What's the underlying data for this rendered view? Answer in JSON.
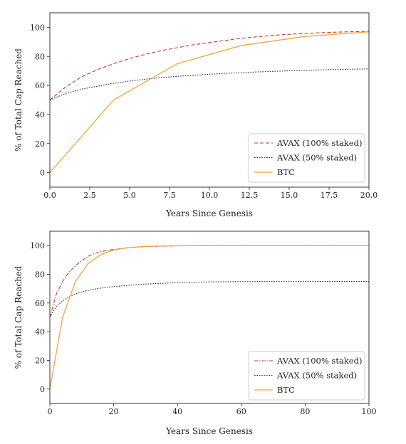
{
  "chart_data": [
    {
      "type": "line",
      "xlabel": "Years Since Genesis",
      "ylabel": "% of Total Cap Reached",
      "xlim": [
        0,
        20
      ],
      "ylim": [
        -10,
        110
      ],
      "xticks": [
        "0.0",
        "2.5",
        "5.0",
        "7.5",
        "10.0",
        "12.5",
        "15.0",
        "17.5",
        "20.0"
      ],
      "yticks": [
        "0",
        "20",
        "40",
        "60",
        "80",
        "100"
      ],
      "grid": false,
      "legend_position": "lower-right",
      "series": [
        {
          "name": "AVAX (100% staked)",
          "color": "#c0392b",
          "style": "dashed",
          "x": [
            0,
            1,
            2,
            3,
            4,
            5,
            6,
            7,
            8,
            9,
            10,
            11,
            12,
            13,
            14,
            15,
            16,
            17,
            18,
            19,
            20
          ],
          "y": [
            50,
            59,
            66,
            71,
            75,
            78.5,
            81.5,
            84,
            86,
            88,
            89.5,
            91,
            92.5,
            93.5,
            94.5,
            95.2,
            95.8,
            96.3,
            96.7,
            97,
            97.3
          ]
        },
        {
          "name": "AVAX (50% staked)",
          "color": "#2c2c3a",
          "style": "dotted",
          "x": [
            0,
            1,
            2,
            3,
            4,
            5,
            6,
            7,
            8,
            9,
            10,
            11,
            12,
            13,
            14,
            15,
            16,
            17,
            18,
            19,
            20
          ],
          "y": [
            50,
            54.5,
            57.5,
            59.5,
            61.5,
            63,
            64.3,
            65.4,
            66.3,
            67,
            67.7,
            68.3,
            68.8,
            69.3,
            69.7,
            70.1,
            70.4,
            70.7,
            71,
            71.2,
            71.4
          ]
        },
        {
          "name": "BTC",
          "color": "#f5a142",
          "style": "solid",
          "x": [
            0,
            4,
            8,
            12,
            16,
            20
          ],
          "y": [
            0,
            50,
            75,
            87.5,
            93.75,
            96.9
          ]
        }
      ]
    },
    {
      "type": "line",
      "xlabel": "Years Since Genesis",
      "ylabel": "% of Total Cap Reached",
      "xlim": [
        0,
        100
      ],
      "ylim": [
        -10,
        110
      ],
      "xticks": [
        "0",
        "20",
        "40",
        "60",
        "80",
        "100"
      ],
      "yticks": [
        "0",
        "20",
        "40",
        "60",
        "80",
        "100"
      ],
      "grid": false,
      "legend_position": "lower-right",
      "series": [
        {
          "name": "AVAX (100% staked)",
          "color": "#c0392b",
          "style": "dashdot",
          "x": [
            0,
            2,
            4,
            6,
            8,
            10,
            12,
            14,
            16,
            18,
            20,
            25,
            30,
            40,
            50,
            60,
            80,
            100
          ],
          "y": [
            50,
            66,
            75,
            81.5,
            86,
            89.5,
            92.5,
            94.5,
            95.8,
            96.7,
            97.3,
            98.6,
            99.3,
            99.8,
            99.95,
            100,
            100,
            100
          ]
        },
        {
          "name": "AVAX (50% staked)",
          "color": "#2c2c3a",
          "style": "dotted",
          "x": [
            0,
            2,
            4,
            6,
            8,
            10,
            12,
            14,
            16,
            18,
            20,
            25,
            30,
            40,
            50,
            60,
            80,
            100
          ],
          "y": [
            50,
            57.5,
            61.5,
            64.3,
            66.3,
            67.7,
            68.8,
            69.7,
            70.4,
            71,
            71.4,
            72.4,
            73.2,
            74.2,
            74.7,
            74.9,
            75,
            75
          ]
        },
        {
          "name": "BTC",
          "color": "#f5a142",
          "style": "solid",
          "x": [
            0,
            4,
            8,
            12,
            16,
            20,
            24,
            28,
            32,
            40,
            50,
            60,
            80,
            100
          ],
          "y": [
            0,
            50,
            75,
            87.5,
            93.75,
            96.9,
            98.4,
            99.2,
            99.6,
            99.9,
            100,
            100,
            100,
            100
          ]
        }
      ]
    }
  ]
}
